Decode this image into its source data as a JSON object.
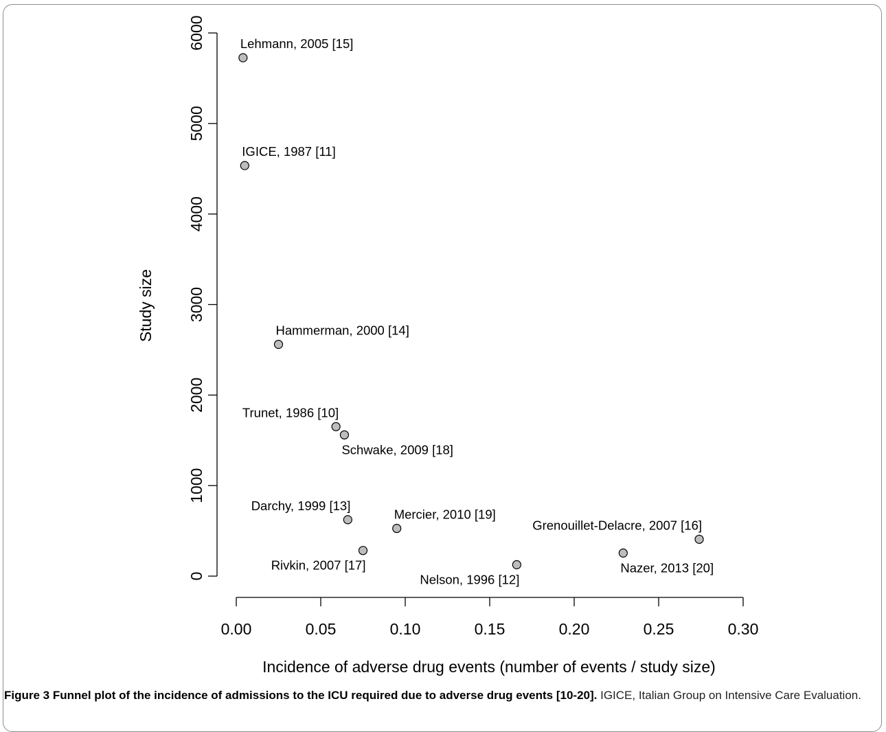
{
  "chart_data": {
    "type": "scatter",
    "xlabel": "Incidence of adverse drug events (number of events / study size)",
    "ylabel": "Study size",
    "xlim": [
      0.0,
      0.3
    ],
    "ylim": [
      0,
      6000
    ],
    "x_ticks": [
      "0.00",
      "0.05",
      "0.10",
      "0.15",
      "0.20",
      "0.25",
      "0.30"
    ],
    "y_ticks": [
      "0",
      "1000",
      "2000",
      "3000",
      "4000",
      "5000",
      "6000"
    ],
    "grid": false,
    "points": [
      {
        "label": "Lehmann, 2005 [15]",
        "x": 0.004,
        "y": 5726,
        "label_pos": "above-right"
      },
      {
        "label": "IGICE, 1987 [11]",
        "x": 0.005,
        "y": 4535,
        "label_pos": "above-right"
      },
      {
        "label": "Hammerman, 2000 [14]",
        "x": 0.025,
        "y": 2560,
        "label_pos": "above-right"
      },
      {
        "label": "Trunet, 1986 [10]",
        "x": 0.059,
        "y": 1651,
        "label_pos": "above-left"
      },
      {
        "label": "Schwake, 2009 [18]",
        "x": 0.064,
        "y": 1560,
        "label_pos": "below-right"
      },
      {
        "label": "Darchy, 1999 [13]",
        "x": 0.066,
        "y": 623,
        "label_pos": "above-left"
      },
      {
        "label": "Mercier, 2010 [19]",
        "x": 0.095,
        "y": 527,
        "label_pos": "above-right"
      },
      {
        "label": "Rivkin, 2007 [17]",
        "x": 0.075,
        "y": 283,
        "label_pos": "below-left"
      },
      {
        "label": "Nelson, 1996 [12]",
        "x": 0.166,
        "y": 126,
        "label_pos": "below-left"
      },
      {
        "label": "Grenouillet-Delacre, 2007 [16]",
        "x": 0.274,
        "y": 407,
        "label_pos": "above-left"
      },
      {
        "label": "Nazer, 2013 [20]",
        "x": 0.229,
        "y": 255,
        "label_pos": "below-right"
      }
    ]
  },
  "caption": {
    "bold": "Figure 3 Funnel plot of the incidence of admissions to the ICU required due to adverse drug events [10-20].",
    "rest": " IGICE, Italian Group on Intensive Care Evaluation."
  }
}
